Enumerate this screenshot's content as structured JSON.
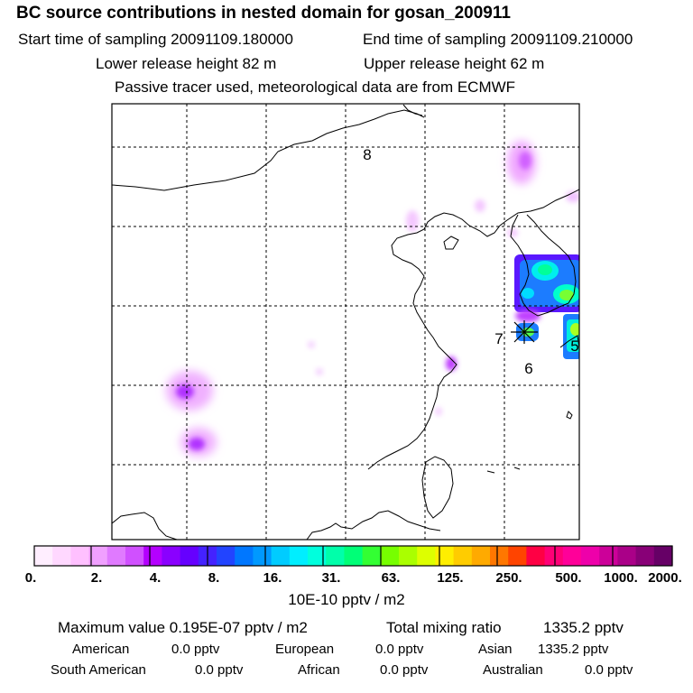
{
  "header": {
    "title": "BC  source contributions in nested domain for gosan_200911",
    "start_label": "Start time of sampling 20091109.180000",
    "end_label": "End time of sampling 20091109.210000",
    "lower_label": "Lower release height   82 m",
    "upper_label": "Upper release height   62 m",
    "note": "Passive tracer used, meteorological data are from ECMWF"
  },
  "map": {
    "markers": {
      "m8": "8",
      "m7": "7",
      "m6": "6",
      "m5": "5"
    }
  },
  "colorbar": {
    "ticks": [
      "0.",
      "2.",
      "4.",
      "8.",
      "16.",
      "31.",
      "63.",
      "125.",
      "250.",
      "500.",
      "1000.",
      "2000."
    ],
    "unit": "10E-10 pptv / m2",
    "colors": [
      "#ffeeff",
      "#ffd8ff",
      "#ffc0ff",
      "#f0a0ff",
      "#e07aff",
      "#d050ff",
      "#b400ff",
      "#8a00ff",
      "#6600ff",
      "#4422ff",
      "#2244ff",
      "#0077ff",
      "#0099ff",
      "#00ccff",
      "#00eeff",
      "#00ffdd",
      "#00ffaa",
      "#00ff77",
      "#33ff33",
      "#77ff00",
      "#aaff00",
      "#ddff00",
      "#ffee00",
      "#ffcc00",
      "#ffaa00",
      "#ff7700",
      "#ff4400",
      "#ff0044",
      "#ff0077",
      "#ff0099",
      "#ee00aa",
      "#cc0099",
      "#aa0088",
      "#880077",
      "#660066"
    ]
  },
  "summary": {
    "max_label": "Maximum value  0.195E-07 pptv / m2",
    "total_label": "Total mixing ratio",
    "total_value": "1335.2 pptv",
    "american_label": "American",
    "american_value": "0.0 pptv",
    "european_label": "European",
    "european_value": "0.0 pptv",
    "asian_label": "Asian",
    "asian_value": "1335.2 pptv",
    "south_american_label": "South American",
    "south_american_value": "0.0 pptv",
    "african_label": "African",
    "african_value": "0.0 pptv",
    "australian_label": "Australian",
    "australian_value": "0.0 pptv"
  }
}
